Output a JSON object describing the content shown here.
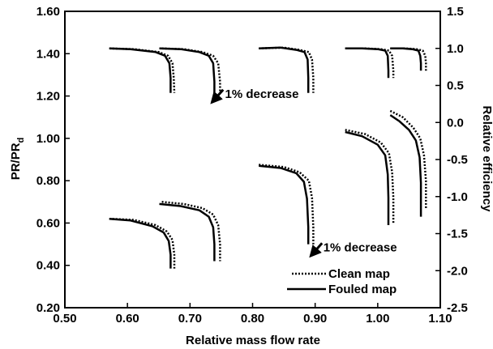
{
  "chart_data": {
    "type": "line",
    "xlabel": "Relative mass flow rate",
    "ylabel": "PR/PR",
    "ylabel_subscript": "d",
    "y2label": "Relative efficiency",
    "xlim": [
      0.5,
      1.1
    ],
    "ylim": [
      0.2,
      1.6
    ],
    "y2lim": [
      -2.5,
      1.5
    ],
    "xticks": [
      "0.50",
      "0.60",
      "0.70",
      "0.80",
      "0.90",
      "1.00",
      "1.10"
    ],
    "yticks": [
      "0.20",
      "0.40",
      "0.60",
      "0.80",
      "1.00",
      "1.20",
      "1.40",
      "1.60"
    ],
    "y2ticks": [
      "-2.5",
      "-2.0",
      "-1.5",
      "-1.0",
      "-0.5",
      "0.0",
      "0.5",
      "1.0",
      "1.5"
    ],
    "grid": false,
    "legend": {
      "position": "bottom-right",
      "entries": [
        {
          "label": "Clean map",
          "style": "dotted"
        },
        {
          "label": "Fouled map",
          "style": "solid"
        }
      ]
    },
    "annotations": [
      {
        "text": "1% decrease",
        "x": 0.756,
        "y": 1.19,
        "arrow_to": [
          0.735,
          1.17
        ],
        "arrow_from": [
          0.753,
          1.23
        ]
      },
      {
        "text": "1% decrease",
        "x": 0.913,
        "y": 0.465,
        "arrow_to": [
          0.893,
          0.445
        ],
        "arrow_from": [
          0.911,
          0.505
        ]
      }
    ],
    "series": [
      {
        "style": "dotted",
        "axis": "y2",
        "x": [
          0.571,
          0.61,
          0.65,
          0.665,
          0.672,
          0.674,
          0.675
        ],
        "y": [
          1.0,
          0.99,
          0.95,
          0.9,
          0.8,
          0.6,
          0.4
        ]
      },
      {
        "style": "solid",
        "axis": "y2",
        "x": [
          0.571,
          0.605,
          0.645,
          0.66,
          0.667,
          0.669,
          0.669
        ],
        "y": [
          1.0,
          0.99,
          0.95,
          0.9,
          0.8,
          0.6,
          0.4
        ]
      },
      {
        "style": "dotted",
        "axis": "y2",
        "x": [
          0.655,
          0.69,
          0.72,
          0.737,
          0.745,
          0.748,
          0.748
        ],
        "y": [
          1.0,
          0.99,
          0.95,
          0.9,
          0.8,
          0.55,
          0.4
        ]
      },
      {
        "style": "solid",
        "axis": "y2",
        "x": [
          0.651,
          0.685,
          0.715,
          0.73,
          0.737,
          0.739,
          0.739
        ],
        "y": [
          1.0,
          0.99,
          0.95,
          0.9,
          0.8,
          0.55,
          0.4
        ]
      },
      {
        "style": "dotted",
        "axis": "y2",
        "x": [
          0.81,
          0.85,
          0.875,
          0.89,
          0.895,
          0.897,
          0.897
        ],
        "y": [
          1.0,
          1.01,
          0.98,
          0.95,
          0.85,
          0.6,
          0.4
        ]
      },
      {
        "style": "solid",
        "axis": "y2",
        "x": [
          0.81,
          0.845,
          0.87,
          0.883,
          0.888,
          0.889,
          0.889
        ],
        "y": [
          1.0,
          1.01,
          0.98,
          0.95,
          0.85,
          0.6,
          0.4
        ]
      },
      {
        "style": "dotted",
        "axis": "y2",
        "x": [
          0.948,
          0.98,
          1.005,
          1.018,
          1.023,
          1.025,
          1.025
        ],
        "y": [
          1.0,
          1.0,
          0.99,
          0.97,
          0.9,
          0.7,
          0.6
        ]
      },
      {
        "style": "solid",
        "axis": "y2",
        "x": [
          0.948,
          0.975,
          1.0,
          1.012,
          1.016,
          1.017,
          1.017
        ],
        "y": [
          1.0,
          1.0,
          0.99,
          0.97,
          0.9,
          0.7,
          0.6
        ]
      },
      {
        "style": "dotted",
        "axis": "y2",
        "x": [
          1.02,
          1.045,
          1.062,
          1.072,
          1.076,
          1.077,
          1.077
        ],
        "y": [
          1.0,
          1.0,
          0.99,
          0.97,
          0.9,
          0.8,
          0.7
        ]
      },
      {
        "style": "solid",
        "axis": "y2",
        "x": [
          1.02,
          1.04,
          1.055,
          1.065,
          1.068,
          1.069,
          1.069
        ],
        "y": [
          1.0,
          1.0,
          0.99,
          0.97,
          0.9,
          0.8,
          0.7
        ]
      },
      {
        "style": "dotted",
        "axis": "y1",
        "x": [
          0.571,
          0.61,
          0.645,
          0.663,
          0.672,
          0.675,
          0.675
        ],
        "y": [
          0.62,
          0.615,
          0.59,
          0.56,
          0.52,
          0.45,
          0.385
        ]
      },
      {
        "style": "solid",
        "axis": "y1",
        "x": [
          0.571,
          0.605,
          0.64,
          0.658,
          0.666,
          0.669,
          0.669
        ],
        "y": [
          0.62,
          0.612,
          0.585,
          0.555,
          0.515,
          0.45,
          0.385
        ]
      },
      {
        "style": "dotted",
        "axis": "y1",
        "x": [
          0.655,
          0.69,
          0.72,
          0.737,
          0.745,
          0.748,
          0.748
        ],
        "y": [
          0.7,
          0.69,
          0.67,
          0.64,
          0.59,
          0.5,
          0.42
        ]
      },
      {
        "style": "solid",
        "axis": "y1",
        "x": [
          0.651,
          0.685,
          0.715,
          0.73,
          0.737,
          0.739,
          0.739
        ],
        "y": [
          0.69,
          0.68,
          0.66,
          0.63,
          0.58,
          0.5,
          0.42
        ]
      },
      {
        "style": "dotted",
        "axis": "y1",
        "x": [
          0.81,
          0.85,
          0.875,
          0.89,
          0.895,
          0.897,
          0.897
        ],
        "y": [
          0.875,
          0.865,
          0.84,
          0.8,
          0.72,
          0.58,
          0.5
        ]
      },
      {
        "style": "solid",
        "axis": "y1",
        "x": [
          0.81,
          0.845,
          0.87,
          0.882,
          0.887,
          0.889,
          0.889
        ],
        "y": [
          0.87,
          0.86,
          0.835,
          0.795,
          0.715,
          0.58,
          0.5
        ]
      },
      {
        "style": "dotted",
        "axis": "y1",
        "x": [
          0.948,
          0.98,
          1.005,
          1.018,
          1.023,
          1.025,
          1.025
        ],
        "y": [
          1.04,
          1.02,
          0.98,
          0.93,
          0.84,
          0.72,
          0.6
        ]
      },
      {
        "style": "solid",
        "axis": "y1",
        "x": [
          0.948,
          0.975,
          1.0,
          1.012,
          1.016,
          1.017,
          1.017
        ],
        "y": [
          1.03,
          1.01,
          0.97,
          0.92,
          0.83,
          0.72,
          0.59
        ]
      },
      {
        "style": "dotted",
        "axis": "y1",
        "x": [
          1.02,
          1.04,
          1.057,
          1.068,
          1.074,
          1.077,
          1.077
        ],
        "y": [
          1.13,
          1.1,
          1.05,
          1.0,
          0.92,
          0.8,
          0.67
        ]
      },
      {
        "style": "solid",
        "axis": "y1",
        "x": [
          1.02,
          1.035,
          1.05,
          1.061,
          1.067,
          1.069,
          1.069
        ],
        "y": [
          1.11,
          1.08,
          1.04,
          0.99,
          0.91,
          0.79,
          0.63
        ]
      }
    ]
  }
}
